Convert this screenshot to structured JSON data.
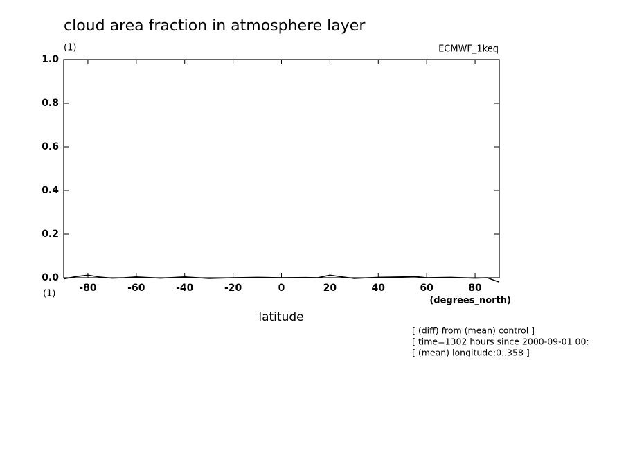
{
  "chart_data": {
    "type": "line",
    "title": "cloud area fraction in atmosphere layer",
    "y_unit": "(1)",
    "model": "ECMWF_1keq",
    "x_unit_left": "(1)",
    "x_unit": "(degrees_north)",
    "xlabel": "latitude",
    "info": [
      "[ (diff) from (mean) control ]",
      "[ time=1302 hours since 2000-09-01 00:",
      "[ (mean) longitude:0..358 ]"
    ],
    "x": [
      -90,
      -85,
      -80,
      -75,
      -70,
      -65,
      -60,
      -50,
      -40,
      -30,
      -20,
      -10,
      0,
      10,
      15,
      20,
      25,
      30,
      40,
      50,
      55,
      60,
      70,
      80,
      85,
      90
    ],
    "series": [
      {
        "name": "cloud area fraction",
        "color": "#000000",
        "values": [
          -0.005,
          0.005,
          0.012,
          0.003,
          -0.002,
          0.0,
          0.004,
          -0.002,
          0.004,
          -0.003,
          0.0,
          0.002,
          0.0,
          0.001,
          0.0,
          0.012,
          0.004,
          -0.003,
          0.002,
          0.004,
          0.006,
          0.0,
          0.002,
          -0.002,
          0.0,
          -0.02
        ]
      }
    ],
    "xlim": [
      -90,
      90
    ],
    "xticks": [
      -80,
      -60,
      -40,
      -20,
      0,
      20,
      40,
      60,
      80
    ],
    "ylim": [
      0,
      1
    ],
    "yticks": [
      {
        "value": 0,
        "label": "0.0"
      },
      0.2,
      0.4,
      0.6,
      0.8,
      {
        "value": 1,
        "label": "1.0"
      }
    ]
  }
}
